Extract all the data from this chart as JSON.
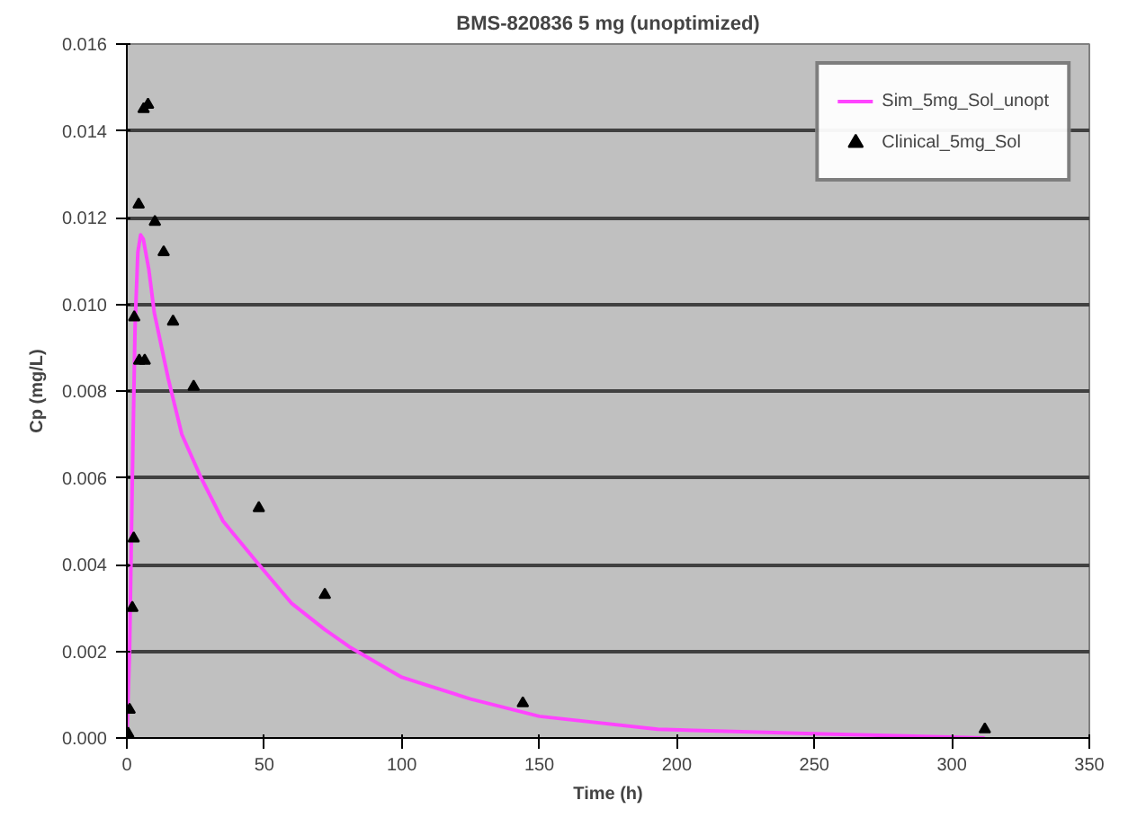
{
  "chart_data": {
    "type": "line",
    "title": "BMS-820836 5 mg (unoptimized)",
    "xlabel": "Time (h)",
    "ylabel": "Cp (mg/L)",
    "xlim": [
      0,
      350
    ],
    "xticks": [
      0,
      50,
      100,
      150,
      200,
      250,
      300,
      350
    ],
    "ylim": [
      0,
      0.016
    ],
    "yticks": [
      {
        "value": 0,
        "label": "0.000"
      },
      {
        "value": 0.002,
        "label": "0.002"
      },
      {
        "value": 0.004,
        "label": "0.004"
      },
      {
        "value": 0.006,
        "label": "0.006"
      },
      {
        "value": 0.008,
        "label": "0.008"
      },
      {
        "value": 0.01,
        "label": "0.010"
      },
      {
        "value": 0.012,
        "label": "0.012"
      },
      {
        "value": 0.014,
        "label": "0.014"
      },
      {
        "value": 0.016,
        "label": "0.016"
      }
    ],
    "grid": "y",
    "legend": "top right",
    "series": [
      {
        "name": "Sim_5mg_Sol_unopt",
        "color": "#ff44ff",
        "marker": "none",
        "line_style": "solid",
        "x": [
          0,
          1,
          2,
          3,
          4,
          5,
          6,
          8,
          10,
          15,
          20,
          27,
          35,
          48,
          60,
          72,
          81,
          100,
          125,
          150,
          193,
          250,
          312
        ],
        "values": [
          0,
          0.002,
          0.006,
          0.0095,
          0.0112,
          0.0116,
          0.0115,
          0.0108,
          0.0098,
          0.0083,
          0.007,
          0.006,
          0.005,
          0.004,
          0.0031,
          0.0025,
          0.0021,
          0.0014,
          0.0009,
          0.0005,
          0.0002,
          0.0001,
          0
        ]
      },
      {
        "name": "Clinical_5mg_Sol",
        "type": "scatter",
        "color": "#000000",
        "marker": "triangle",
        "x": [
          0.5,
          1,
          2,
          2.5,
          2.7,
          4.3,
          4.5,
          6.5,
          6.1,
          7.7,
          10.2,
          13.4,
          16.8,
          24.3,
          48,
          72,
          144,
          312
        ],
        "values": [
          0.0001,
          0.00065,
          0.003,
          0.0046,
          0.0097,
          0.0123,
          0.0087,
          0.0087,
          0.0145,
          0.0146,
          0.0119,
          0.0112,
          0.0096,
          0.0081,
          0.0053,
          0.0033,
          0.0008,
          0.0002
        ]
      }
    ]
  }
}
